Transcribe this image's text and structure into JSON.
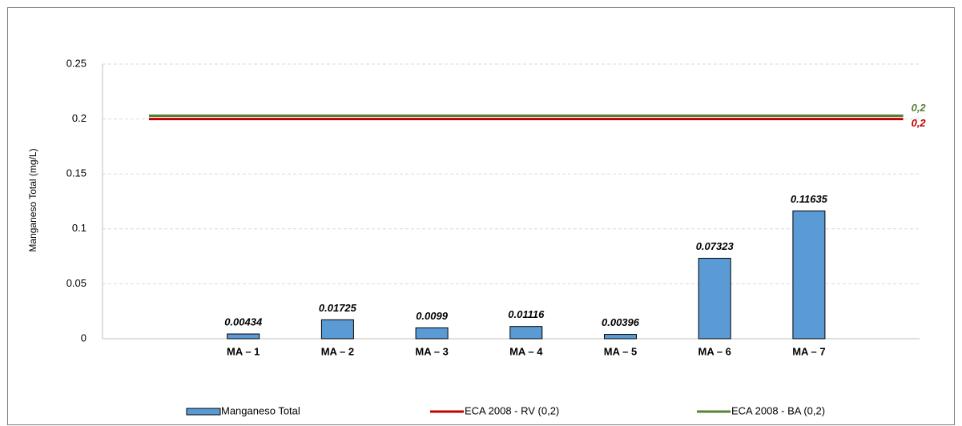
{
  "chart_data": {
    "type": "bar",
    "y_label": "Manganeso Total (mg/L)",
    "categories": [
      null,
      "MA – 1",
      "MA – 2",
      "MA – 3",
      "MA – 4",
      "MA – 5",
      "MA – 6",
      "MA – 7",
      null
    ],
    "series": [
      {
        "name": "Manganeso Total",
        "type": "bar",
        "color": "#5b9bd5",
        "values": [
          null,
          0.00434,
          0.01725,
          0.0099,
          0.01116,
          0.00396,
          0.07323,
          0.11635,
          null
        ]
      },
      {
        "name": "ECA 2008 - RV (0,2)",
        "type": "line",
        "color": "#c00000",
        "values": [
          0.2,
          0.2,
          0.2,
          0.2,
          0.2,
          0.2,
          0.2,
          0.2,
          0.2
        ],
        "value_labels": [
          null,
          null,
          null,
          null,
          null,
          null,
          null,
          null,
          "0,2"
        ]
      },
      {
        "name": "ECA 2008 - BA (0,2)",
        "type": "line",
        "color": "#548235",
        "values": [
          0.203,
          0.203,
          0.203,
          0.203,
          0.203,
          0.203,
          0.203,
          0.203,
          0.203
        ],
        "value_labels": [
          null,
          null,
          null,
          null,
          null,
          null,
          null,
          null,
          "0,2"
        ]
      }
    ],
    "ylim": [
      0,
      0.25
    ],
    "yticks": [
      0,
      0.05,
      0.1,
      0.15,
      0.2,
      0.25
    ],
    "grid": true
  }
}
